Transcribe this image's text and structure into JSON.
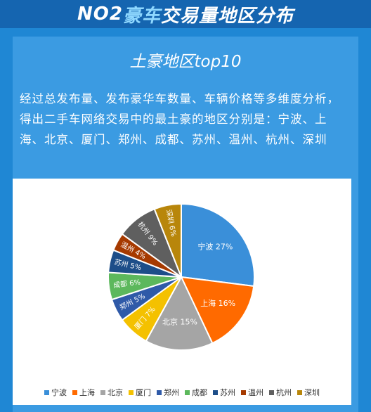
{
  "header": {
    "prefix": "NO2 ",
    "highlight": "豪车",
    "suffix": "交易量地区分布"
  },
  "subtitle": "土豪地区top10",
  "description": "经过总发布量、发布豪华车数量、车辆价格等多维度分析，得出二手车网络交易中的最土豪的地区分别是：宁波、上海、北京、厦门、郑州、成都、苏州、温州、杭州、深圳",
  "chart_data": {
    "type": "pie",
    "categories": [
      "宁波",
      "上海",
      "北京",
      "厦门",
      "郑州",
      "成都",
      "苏州",
      "温州",
      "杭州",
      "深圳"
    ],
    "values": [
      27,
      16,
      15,
      7,
      5,
      6,
      5,
      4,
      9,
      6
    ],
    "labels": [
      "宁波 27%",
      "上海 16%",
      "北京 15%",
      "厦门 7%",
      "郑州 5%",
      "成都 6%",
      "苏州 5%",
      "温州 4%",
      "杭州 9%",
      "深圳 6%"
    ],
    "colors": [
      "#3a8fd9",
      "#ff6a00",
      "#a5a5a5",
      "#f4c100",
      "#2f5aa8",
      "#5cb85c",
      "#1d4e89",
      "#a63a00",
      "#5f5f5f",
      "#b8860b"
    ],
    "start_angle_deg": 0,
    "direction": "clockwise",
    "legend_position": "bottom"
  }
}
